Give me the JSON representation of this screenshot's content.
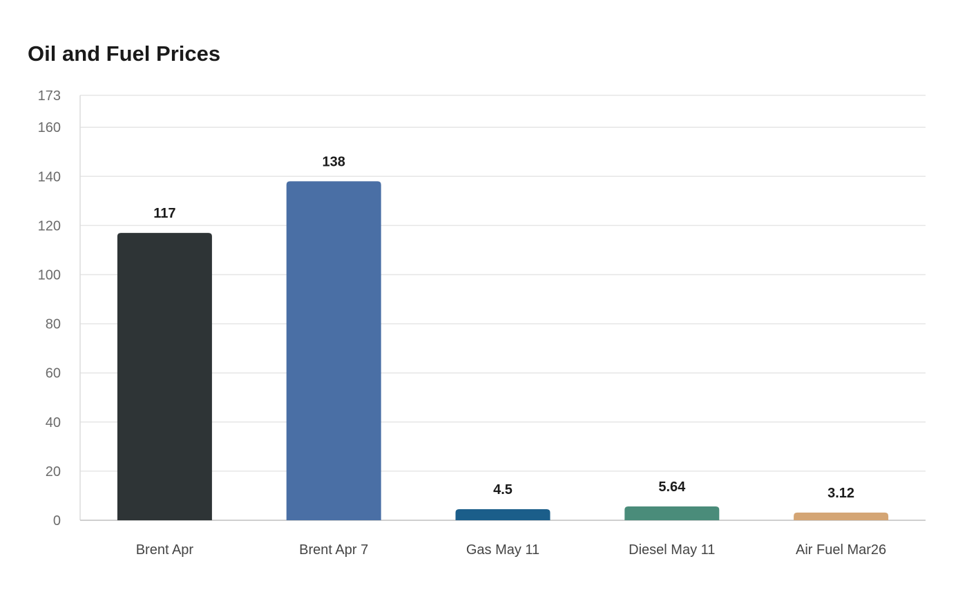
{
  "chart_data": {
    "type": "bar",
    "title": "Oil and Fuel Prices",
    "xlabel": "",
    "ylabel": "",
    "categories": [
      "Brent Apr",
      "Brent Apr 7",
      "Gas May 11",
      "Diesel May 11",
      "Air Fuel Mar26"
    ],
    "values": [
      117,
      138,
      4.5,
      5.64,
      3.12
    ],
    "value_labels": [
      "117",
      "138",
      "4.5",
      "5.64",
      "3.12"
    ],
    "colors": [
      "#2e3436",
      "#4a6fa5",
      "#1b5e8a",
      "#4a8c7a",
      "#d4a574"
    ],
    "ylim": [
      0,
      173
    ],
    "yticks": [
      0,
      20,
      40,
      60,
      80,
      100,
      120,
      140,
      160,
      173
    ],
    "grid": true,
    "legend": "none"
  }
}
